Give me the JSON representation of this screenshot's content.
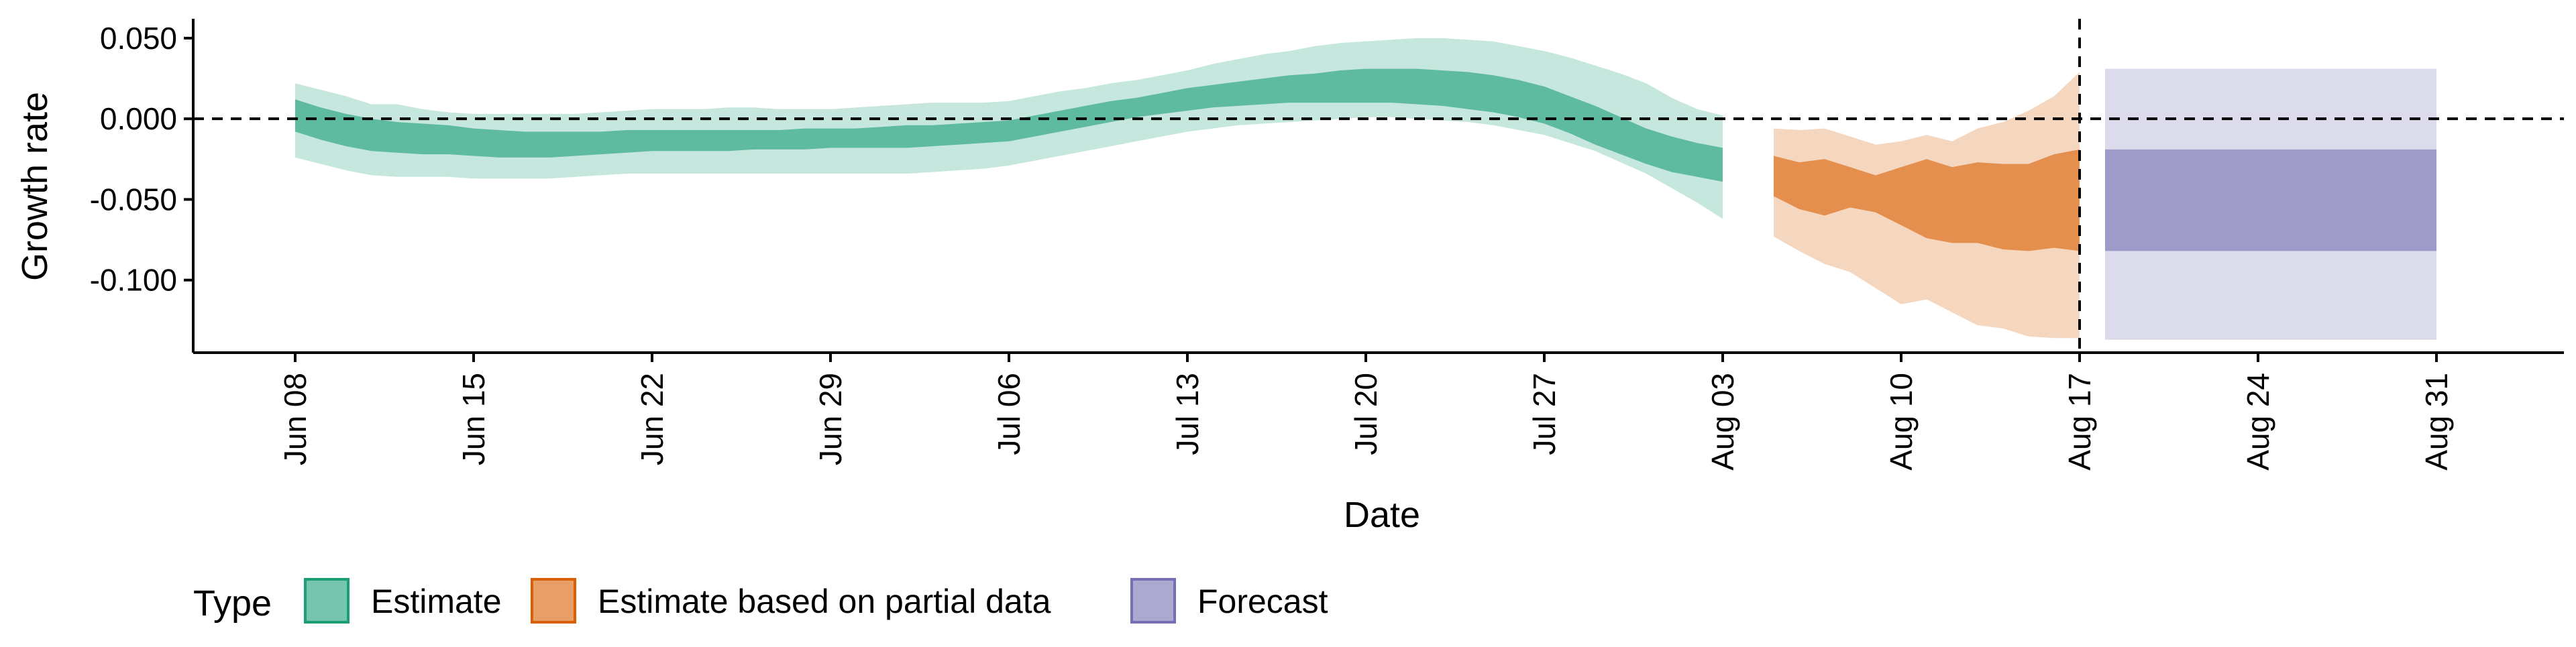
{
  "chart_data": {
    "type": "area",
    "xlabel": "Date",
    "ylabel": "Growth rate",
    "ylim": [
      -0.145,
      0.062
    ],
    "y_ticks": [
      {
        "value": 0.05,
        "label": "0.050"
      },
      {
        "value": 0.0,
        "label": "0.000"
      },
      {
        "value": -0.05,
        "label": "-0.050"
      },
      {
        "value": -0.1,
        "label": "-0.100"
      }
    ],
    "x_ticks": [
      {
        "date": "2020-06-08",
        "label": "Jun 08"
      },
      {
        "date": "2020-06-15",
        "label": "Jun 15"
      },
      {
        "date": "2020-06-22",
        "label": "Jun 22"
      },
      {
        "date": "2020-06-29",
        "label": "Jun 29"
      },
      {
        "date": "2020-07-06",
        "label": "Jul 06"
      },
      {
        "date": "2020-07-13",
        "label": "Jul 13"
      },
      {
        "date": "2020-07-20",
        "label": "Jul 20"
      },
      {
        "date": "2020-07-27",
        "label": "Jul 27"
      },
      {
        "date": "2020-08-03",
        "label": "Aug 03"
      },
      {
        "date": "2020-08-10",
        "label": "Aug 10"
      },
      {
        "date": "2020-08-17",
        "label": "Aug 17"
      },
      {
        "date": "2020-08-24",
        "label": "Aug 24"
      },
      {
        "date": "2020-08-31",
        "label": "Aug 31"
      }
    ],
    "xlim": [
      "2020-06-04",
      "2020-09-05"
    ],
    "reference_lines": {
      "horizontal_y": 0,
      "vertical_date": "2020-08-17",
      "style": "dashed"
    },
    "legend": {
      "title": "Type",
      "position": "bottom-left"
    },
    "series": [
      {
        "name": "Estimate",
        "color": "#1b9e77",
        "dates": [
          "2020-06-08",
          "2020-06-09",
          "2020-06-10",
          "2020-06-11",
          "2020-06-12",
          "2020-06-13",
          "2020-06-14",
          "2020-06-15",
          "2020-06-16",
          "2020-06-17",
          "2020-06-18",
          "2020-06-19",
          "2020-06-20",
          "2020-06-21",
          "2020-06-22",
          "2020-06-23",
          "2020-06-24",
          "2020-06-25",
          "2020-06-26",
          "2020-06-27",
          "2020-06-28",
          "2020-06-29",
          "2020-06-30",
          "2020-07-01",
          "2020-07-02",
          "2020-07-03",
          "2020-07-04",
          "2020-07-05",
          "2020-07-06",
          "2020-07-07",
          "2020-07-08",
          "2020-07-09",
          "2020-07-10",
          "2020-07-11",
          "2020-07-12",
          "2020-07-13",
          "2020-07-14",
          "2020-07-15",
          "2020-07-16",
          "2020-07-17",
          "2020-07-18",
          "2020-07-19",
          "2020-07-20",
          "2020-07-21",
          "2020-07-22",
          "2020-07-23",
          "2020-07-24",
          "2020-07-25",
          "2020-07-26",
          "2020-07-27",
          "2020-07-28",
          "2020-07-29",
          "2020-07-30",
          "2020-07-31",
          "2020-08-01",
          "2020-08-02",
          "2020-08-03"
        ],
        "outer_upper": [
          0.022,
          0.018,
          0.014,
          0.009,
          0.009,
          0.006,
          0.004,
          0.003,
          0.003,
          0.003,
          0.003,
          0.003,
          0.004,
          0.005,
          0.006,
          0.006,
          0.006,
          0.007,
          0.007,
          0.006,
          0.006,
          0.006,
          0.007,
          0.008,
          0.009,
          0.01,
          0.01,
          0.01,
          0.011,
          0.014,
          0.017,
          0.019,
          0.022,
          0.024,
          0.027,
          0.03,
          0.034,
          0.037,
          0.04,
          0.042,
          0.045,
          0.047,
          0.048,
          0.049,
          0.05,
          0.05,
          0.049,
          0.048,
          0.045,
          0.042,
          0.038,
          0.033,
          0.028,
          0.022,
          0.013,
          0.006,
          0.002
        ],
        "inner_upper": [
          0.012,
          0.007,
          0.003,
          0.0,
          -0.002,
          -0.003,
          -0.004,
          -0.006,
          -0.007,
          -0.008,
          -0.008,
          -0.008,
          -0.008,
          -0.007,
          -0.007,
          -0.007,
          -0.007,
          -0.007,
          -0.007,
          -0.007,
          -0.006,
          -0.006,
          -0.006,
          -0.005,
          -0.004,
          -0.004,
          -0.003,
          -0.002,
          -0.001,
          0.002,
          0.005,
          0.008,
          0.011,
          0.013,
          0.016,
          0.019,
          0.021,
          0.023,
          0.025,
          0.027,
          0.028,
          0.03,
          0.031,
          0.031,
          0.031,
          0.03,
          0.029,
          0.027,
          0.024,
          0.02,
          0.014,
          0.008,
          0.001,
          -0.006,
          -0.011,
          -0.015,
          -0.018
        ],
        "inner_lower": [
          -0.008,
          -0.013,
          -0.017,
          -0.02,
          -0.021,
          -0.022,
          -0.022,
          -0.023,
          -0.024,
          -0.024,
          -0.024,
          -0.023,
          -0.022,
          -0.021,
          -0.02,
          -0.02,
          -0.02,
          -0.02,
          -0.019,
          -0.019,
          -0.019,
          -0.018,
          -0.018,
          -0.018,
          -0.018,
          -0.017,
          -0.016,
          -0.015,
          -0.014,
          -0.011,
          -0.008,
          -0.005,
          -0.002,
          0.001,
          0.003,
          0.005,
          0.007,
          0.008,
          0.009,
          0.01,
          0.01,
          0.01,
          0.01,
          0.01,
          0.009,
          0.008,
          0.006,
          0.004,
          0.001,
          -0.003,
          -0.009,
          -0.016,
          -0.022,
          -0.028,
          -0.033,
          -0.036,
          -0.039
        ],
        "outer_lower": [
          -0.024,
          -0.028,
          -0.032,
          -0.035,
          -0.036,
          -0.036,
          -0.036,
          -0.037,
          -0.037,
          -0.037,
          -0.037,
          -0.036,
          -0.035,
          -0.034,
          -0.034,
          -0.034,
          -0.034,
          -0.034,
          -0.034,
          -0.034,
          -0.034,
          -0.034,
          -0.034,
          -0.034,
          -0.034,
          -0.033,
          -0.032,
          -0.031,
          -0.029,
          -0.026,
          -0.023,
          -0.02,
          -0.017,
          -0.014,
          -0.011,
          -0.008,
          -0.006,
          -0.004,
          -0.003,
          -0.002,
          -0.001,
          0.0,
          0.001,
          0.001,
          0.0,
          -0.001,
          -0.002,
          -0.004,
          -0.007,
          -0.01,
          -0.015,
          -0.02,
          -0.027,
          -0.034,
          -0.043,
          -0.052,
          -0.062
        ]
      },
      {
        "name": "Estimate based on partial data",
        "color": "#d95f02",
        "dates": [
          "2020-08-05",
          "2020-08-06",
          "2020-08-07",
          "2020-08-08",
          "2020-08-09",
          "2020-08-10",
          "2020-08-11",
          "2020-08-12",
          "2020-08-13",
          "2020-08-14",
          "2020-08-15",
          "2020-08-16",
          "2020-08-17"
        ],
        "outer_upper": [
          -0.006,
          -0.007,
          -0.006,
          -0.011,
          -0.016,
          -0.014,
          -0.01,
          -0.014,
          -0.006,
          -0.002,
          0.005,
          0.014,
          0.029
        ],
        "inner_upper": [
          -0.023,
          -0.027,
          -0.025,
          -0.03,
          -0.035,
          -0.03,
          -0.025,
          -0.03,
          -0.027,
          -0.028,
          -0.028,
          -0.022,
          -0.019
        ],
        "inner_lower": [
          -0.048,
          -0.056,
          -0.06,
          -0.055,
          -0.058,
          -0.066,
          -0.074,
          -0.077,
          -0.077,
          -0.081,
          -0.082,
          -0.08,
          -0.082
        ],
        "outer_lower": [
          -0.073,
          -0.082,
          -0.09,
          -0.095,
          -0.105,
          -0.115,
          -0.112,
          -0.12,
          -0.128,
          -0.13,
          -0.135,
          -0.136,
          -0.136
        ]
      },
      {
        "name": "Forecast",
        "color": "#7570b3",
        "dates": [
          "2020-08-18",
          "2020-08-31"
        ],
        "outer_upper": [
          0.031,
          0.031
        ],
        "inner_upper": [
          -0.019,
          -0.019
        ],
        "inner_lower": [
          -0.082,
          -0.082
        ],
        "outer_lower": [
          -0.137,
          -0.137
        ]
      }
    ]
  }
}
